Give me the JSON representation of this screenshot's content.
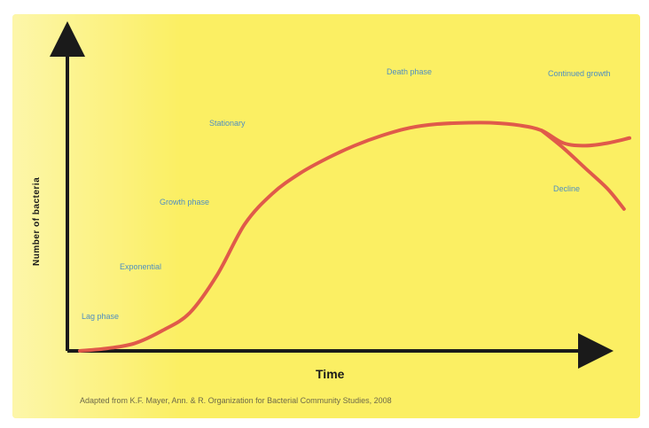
{
  "chart_data": {
    "type": "line",
    "title": "",
    "xlabel": "Time",
    "ylabel": "Number of bacteria",
    "xlim": [
      0,
      100
    ],
    "ylim": [
      0,
      100
    ],
    "grid": false,
    "series": [
      {
        "x": [
          0,
          5,
          10,
          15,
          20,
          25,
          30,
          35,
          40,
          45,
          50,
          55,
          60,
          65,
          70,
          75,
          80,
          84,
          88,
          92,
          96,
          100
        ],
        "y": [
          0,
          1,
          3,
          8,
          15,
          30,
          50,
          62,
          70,
          76,
          81,
          85,
          88,
          89.5,
          90,
          90,
          89,
          87,
          82,
          81,
          82,
          84
        ]
      },
      {
        "x": [
          84,
          88,
          92,
          96,
          99
        ],
        "y": [
          87,
          80,
          72,
          64,
          56
        ]
      }
    ],
    "annotations": [
      "Lag phase",
      "Exponential",
      "Growth phase",
      "Stationary",
      "Death phase",
      "Continued growth",
      "Decline"
    ],
    "colors": {
      "background": "#fbef63",
      "curve": "#e05a4a",
      "axes": "#1a1a1a",
      "labels": "#4f8fc0"
    }
  },
  "caption": "Adapted from K.F. Mayer, Ann. & R. Organization for Bacterial Community Studies, 2008"
}
